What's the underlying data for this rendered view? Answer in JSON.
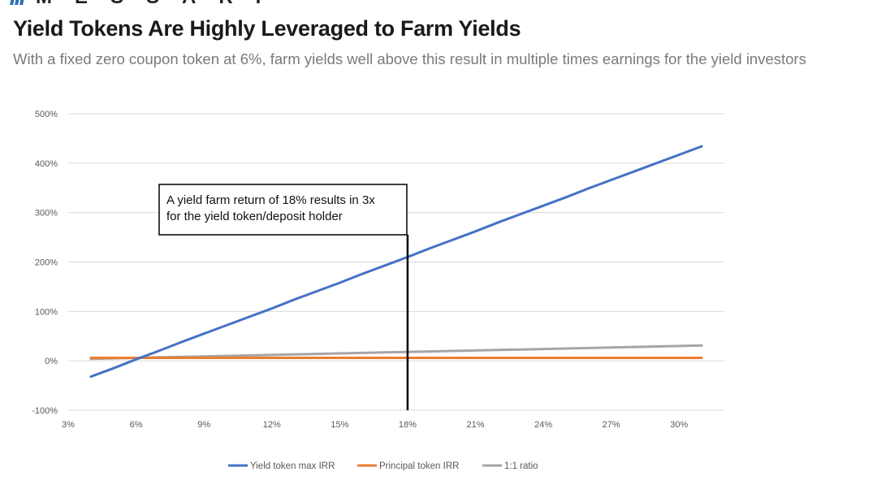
{
  "brand": {
    "name": "MESSARI"
  },
  "header": {
    "title": "Yield Tokens Are Highly Leveraged to Farm Yields",
    "subtitle": "With a fixed zero coupon token at 6%, farm yields well above this result in multiple times earnings for the yield investors"
  },
  "chart_data": {
    "type": "line",
    "x": [
      4,
      5,
      6,
      7,
      8,
      9,
      10,
      11,
      12,
      13,
      14,
      15,
      16,
      17,
      18,
      19,
      20,
      21,
      22,
      23,
      24,
      25,
      26,
      27,
      28,
      29,
      30,
      31
    ],
    "x_ticks": [
      "3%",
      "6%",
      "9%",
      "12%",
      "15%",
      "18%",
      "21%",
      "24%",
      "27%",
      "30%"
    ],
    "y_ticks": [
      "500%",
      "400%",
      "300%",
      "200%",
      "100%",
      "0%",
      "-100%"
    ],
    "xlim": [
      3,
      32
    ],
    "ylim": [
      -100,
      500
    ],
    "grid": true,
    "legend_position": "bottom",
    "series": [
      {
        "name": "Yield token max IRR",
        "color": "#4472c4",
        "values": [
          -32,
          -15,
          3,
          20,
          38,
          55,
          72,
          89,
          106,
          124,
          141,
          158,
          176,
          193,
          210,
          228,
          245,
          262,
          280,
          297,
          314,
          331,
          349,
          366,
          383,
          400,
          417,
          434
        ]
      },
      {
        "name": "Principal token IRR",
        "color": "#ed7d31",
        "values": [
          6,
          6,
          6,
          6,
          6,
          6,
          6,
          6,
          6,
          6,
          6,
          6,
          6,
          6,
          6,
          6,
          6,
          6,
          6,
          6,
          6,
          6,
          6,
          6,
          6,
          6,
          6,
          6
        ]
      },
      {
        "name": "1:1 ratio",
        "color": "#a5a5a5",
        "values": [
          4,
          5,
          6,
          7,
          8,
          9,
          10,
          11,
          12,
          13,
          14,
          15,
          16,
          17,
          18,
          19,
          20,
          21,
          22,
          23,
          24,
          25,
          26,
          27,
          28,
          29,
          30,
          31
        ]
      }
    ],
    "annotation": {
      "x": 18,
      "line1": "A yield farm return of 18% results in 3x",
      "line2": "for the yield token/deposit holder"
    }
  }
}
